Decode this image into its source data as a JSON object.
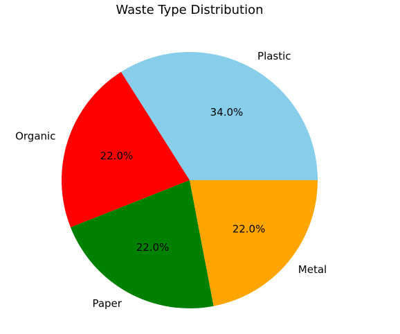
{
  "chart_data": {
    "type": "pie",
    "title": "Waste Type Distribution",
    "categories": [
      "Plastic",
      "Organic",
      "Paper",
      "Metal"
    ],
    "values": [
      34.0,
      22.0,
      22.0,
      22.0
    ],
    "percent_labels": [
      "34.0%",
      "22.0%",
      "22.0%",
      "22.0%"
    ],
    "colors": [
      "#87CEEB",
      "#FF0000",
      "#008000",
      "#FFA500"
    ],
    "start_angle_deg": 0,
    "direction": "counterclockwise",
    "legend": "none"
  }
}
